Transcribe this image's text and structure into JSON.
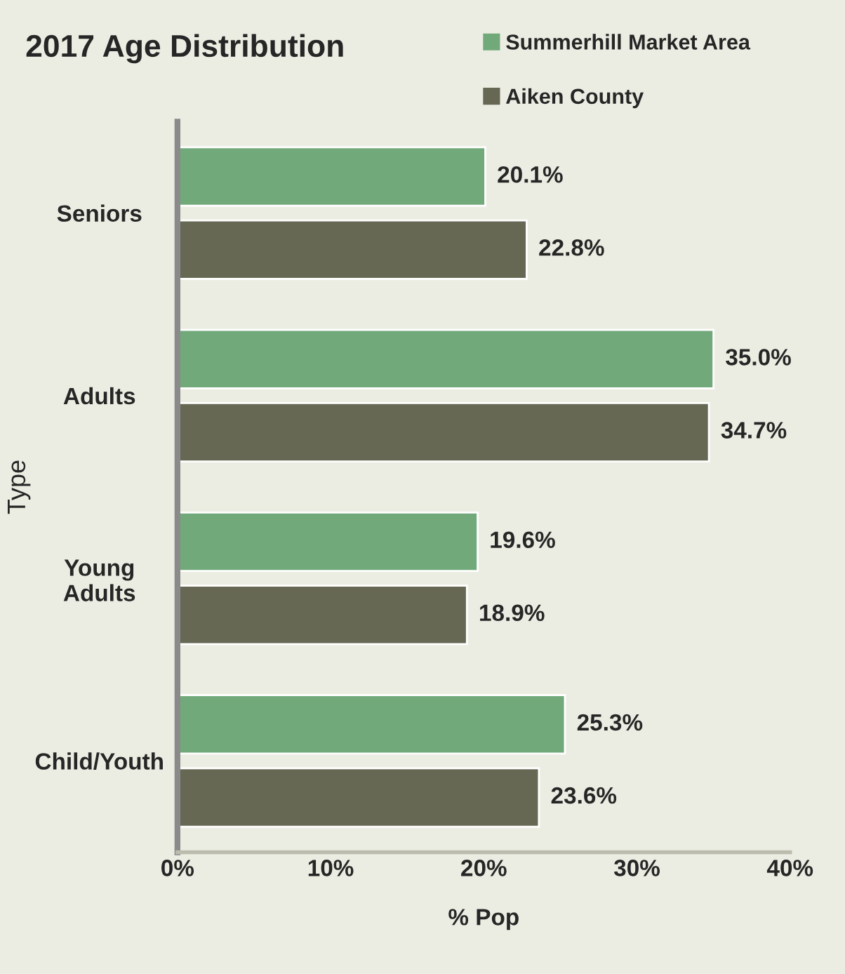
{
  "chart_data": {
    "type": "bar",
    "orientation": "horizontal",
    "title": "2017 Age Distribution",
    "xlabel": "% Pop",
    "ylabel": "Type",
    "categories": [
      "Seniors",
      "Adults",
      "Young Adults",
      "Child/Youth"
    ],
    "series": [
      {
        "name": "Summerhill Market Area",
        "color": "#72a97a",
        "values": [
          20.1,
          35.0,
          19.6,
          25.3
        ],
        "value_labels": [
          "20.1%",
          "35.0%",
          "19.6%",
          "25.3%"
        ]
      },
      {
        "name": "Aiken County",
        "color": "#666853",
        "values": [
          22.8,
          34.7,
          18.9,
          23.6
        ],
        "value_labels": [
          "22.8%",
          "34.7%",
          "18.9%",
          "23.6%"
        ]
      }
    ],
    "xlim": [
      0,
      40
    ],
    "xticks": [
      {
        "value": 0,
        "label": "0%"
      },
      {
        "value": 10,
        "label": "10%"
      },
      {
        "value": 20,
        "label": "20%"
      },
      {
        "value": 30,
        "label": "30%"
      },
      {
        "value": 40,
        "label": "40%"
      }
    ],
    "legend": "top right",
    "grid": false
  }
}
